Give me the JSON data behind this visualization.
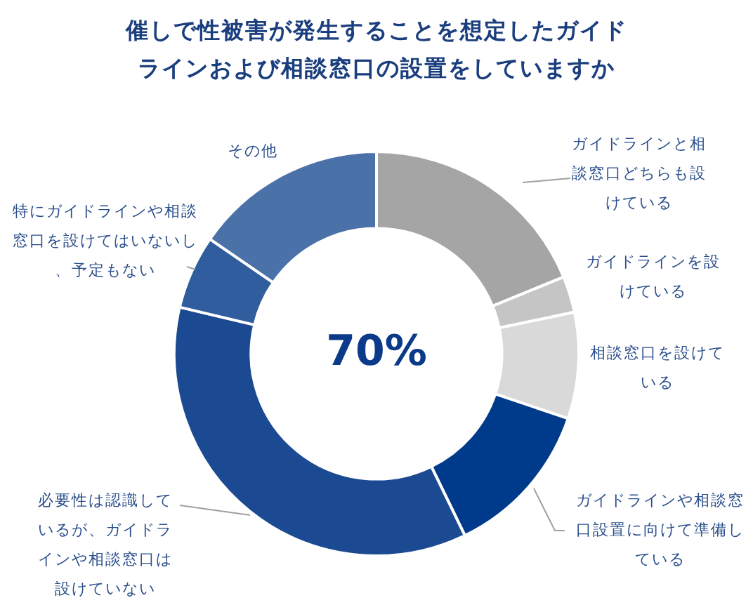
{
  "chart_data": {
    "type": "donut",
    "title": "催しで性被害が発生することを想定したガイドラインおよび相談窓口の設置をしていますか",
    "categories": [
      "ガイドラインと相談窓口どちらも設けている",
      "ガイドラインを設けている",
      "相談窓口を設けている",
      "ガイドラインや相談窓口設置に向けて準備している",
      "必要性は認識しているが、ガイドラインや相談窓口は設けていない",
      "特にガイドラインや相談窓口を設けてはいないし、予定もない",
      "その他"
    ],
    "values": [
      18.8,
      2.9,
      8.5,
      12.6,
      35.9,
      5.9,
      15.4
    ],
    "colors": [
      "#a5a5a5",
      "#c5c5c5",
      "#d9d9d9",
      "#003a8a",
      "#1c4a92",
      "#2f5d9e",
      "#4a71a8"
    ],
    "annotations": [
      "70%"
    ],
    "legend": false
  }
}
